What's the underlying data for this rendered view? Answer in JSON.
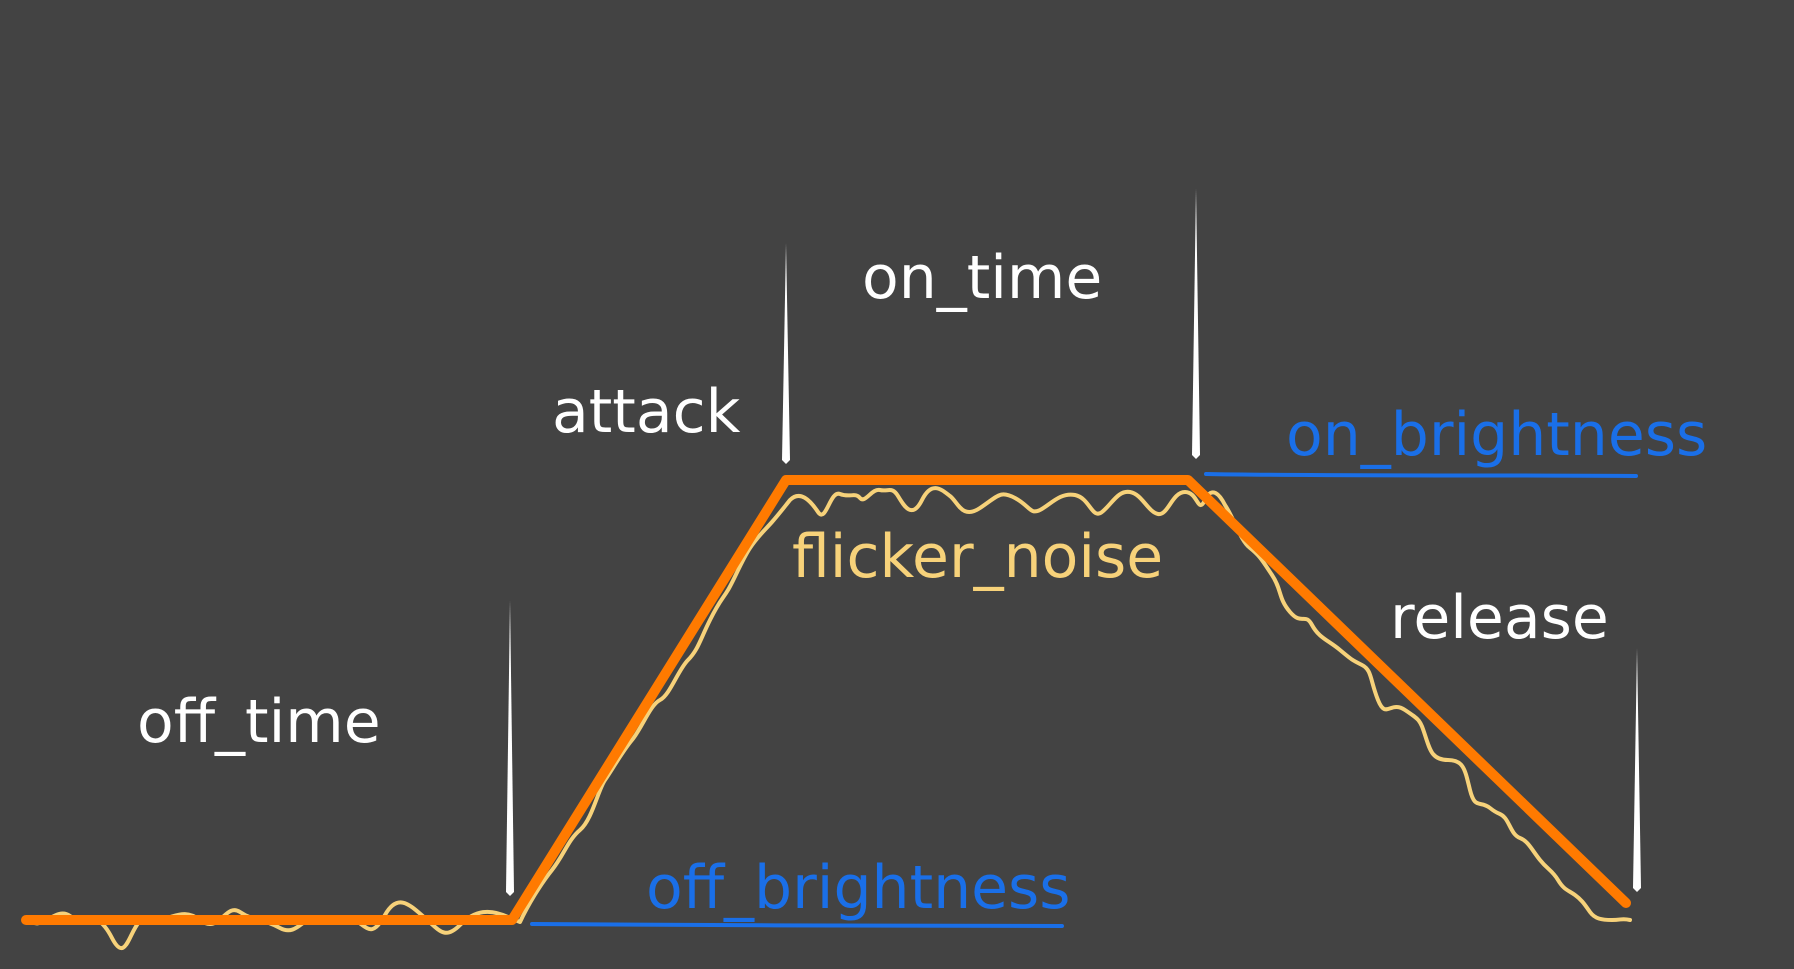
{
  "labels": {
    "off_time": "off_time",
    "attack": "attack",
    "on_time": "on_time",
    "release": "release",
    "on_brightness": "on_brightness",
    "off_brightness": "off_brightness",
    "flicker_noise": "flicker_noise"
  },
  "colors": {
    "background": "#434343",
    "envelope": "#ff7a00",
    "noise": "#f7d27a",
    "level_marker": "#1a6fe8",
    "phase_marker": "#ffffff",
    "phase_text": "#ffffff"
  }
}
